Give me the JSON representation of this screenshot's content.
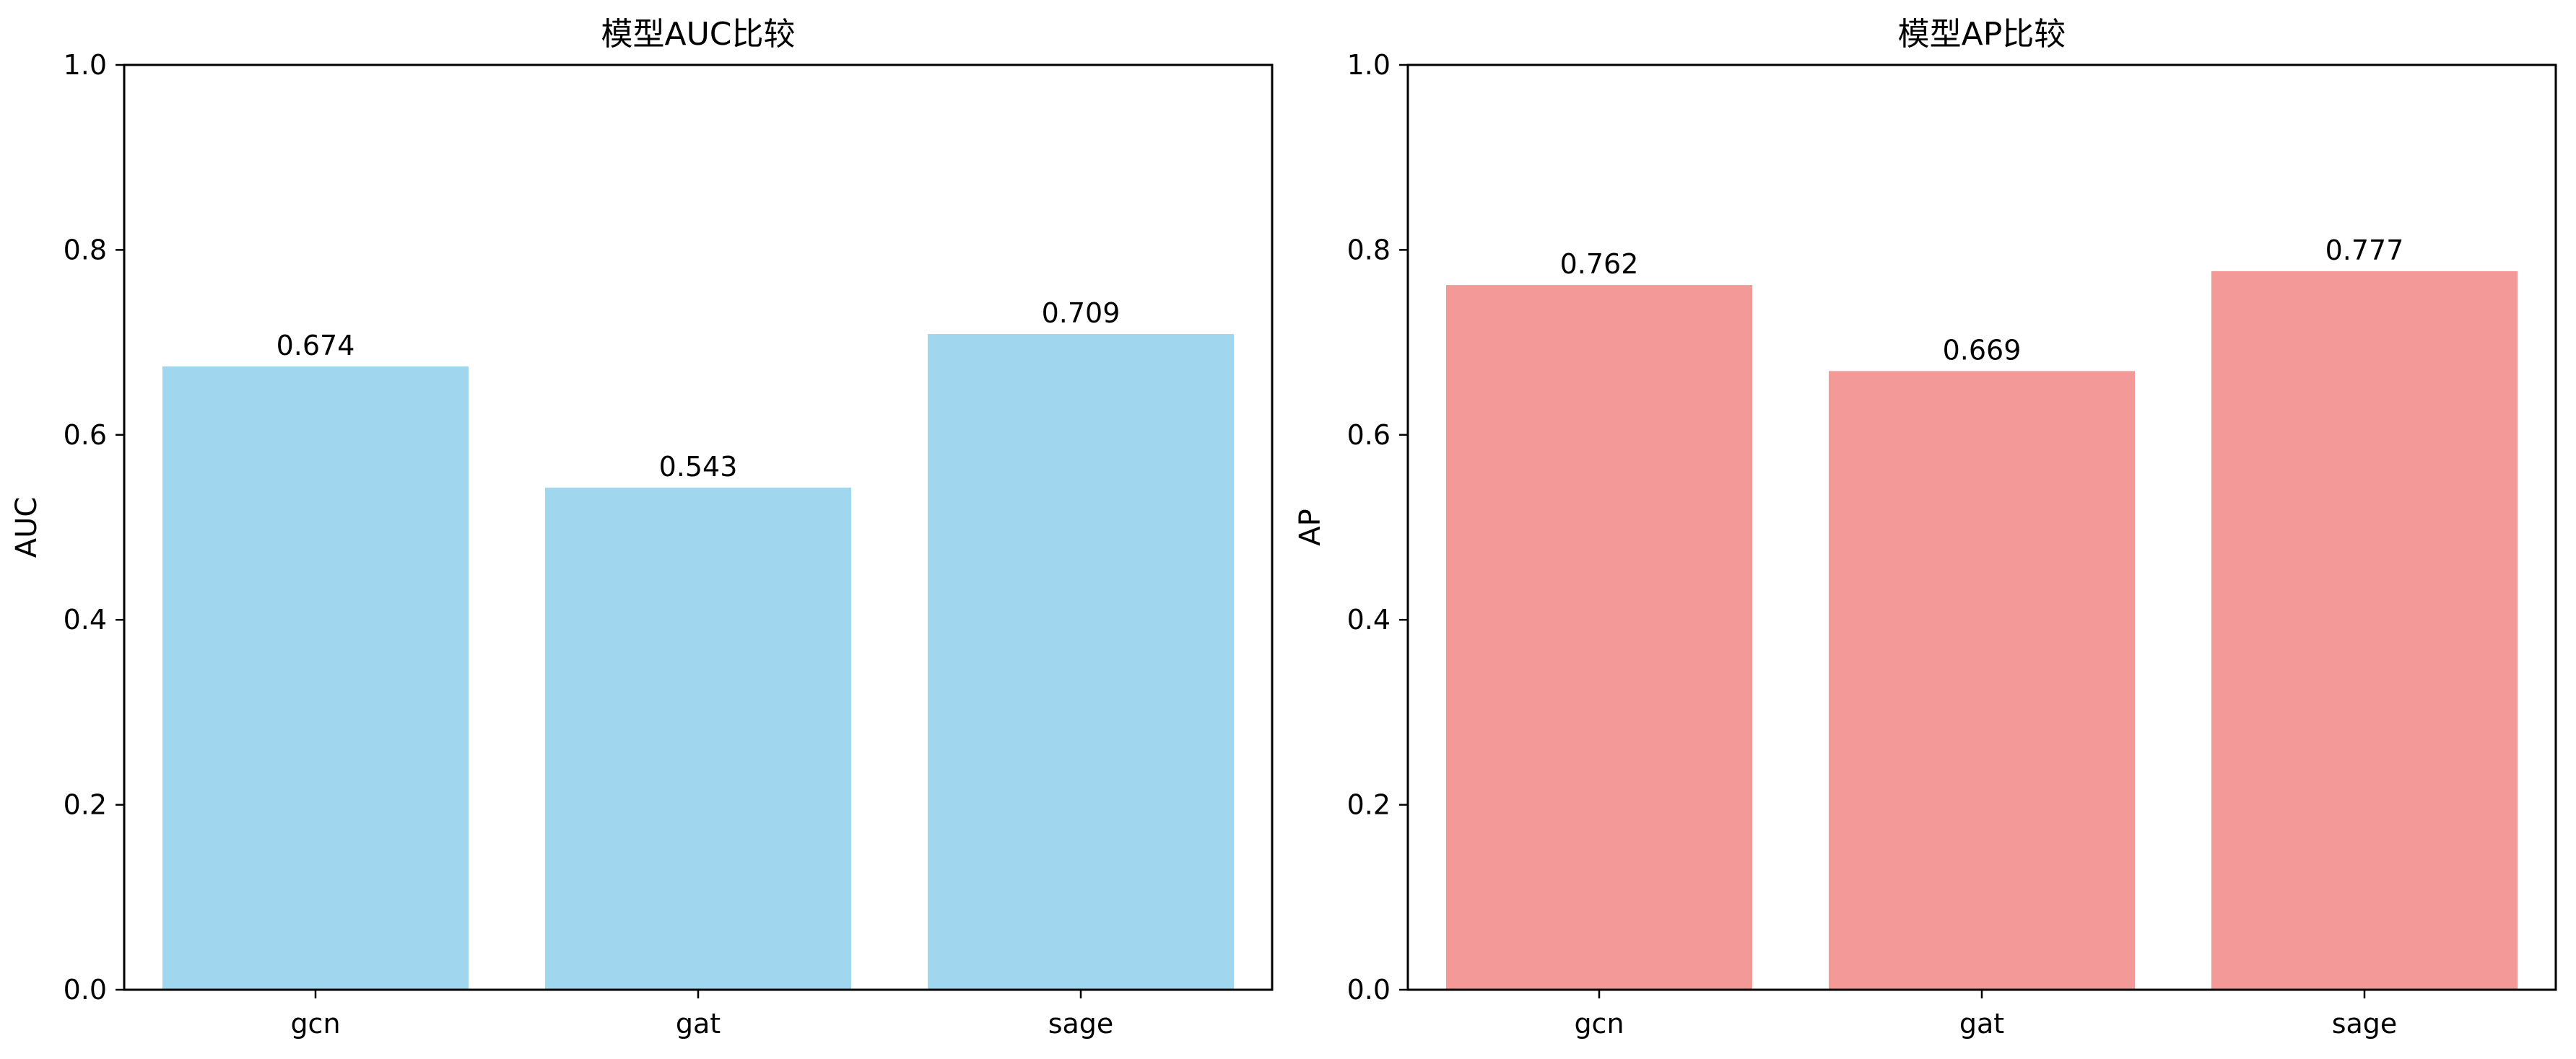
{
  "chart_data": [
    {
      "type": "bar",
      "title": "模型AUC比较",
      "xlabel": "",
      "ylabel": "AUC",
      "categories": [
        "gcn",
        "gat",
        "sage"
      ],
      "values": [
        0.674,
        0.543,
        0.709
      ],
      "value_labels": [
        "0.674",
        "0.543",
        "0.709"
      ],
      "ylim": [
        0,
        1.0
      ],
      "yticks": [
        0.0,
        0.2,
        0.4,
        0.6,
        0.8,
        1.0
      ],
      "ytick_labels": [
        "0.0",
        "0.2",
        "0.4",
        "0.6",
        "0.8",
        "1.0"
      ],
      "bar_color": "#a1d7ee",
      "grid": false
    },
    {
      "type": "bar",
      "title": "模型AP比较",
      "xlabel": "",
      "ylabel": "AP",
      "categories": [
        "gcn",
        "gat",
        "sage"
      ],
      "values": [
        0.762,
        0.669,
        0.777
      ],
      "value_labels": [
        "0.762",
        "0.669",
        "0.777"
      ],
      "ylim": [
        0,
        1.0
      ],
      "yticks": [
        0.0,
        0.2,
        0.4,
        0.6,
        0.8,
        1.0
      ],
      "ytick_labels": [
        "0.0",
        "0.2",
        "0.4",
        "0.6",
        "0.8",
        "1.0"
      ],
      "bar_color": "#f39a99",
      "grid": false
    }
  ]
}
